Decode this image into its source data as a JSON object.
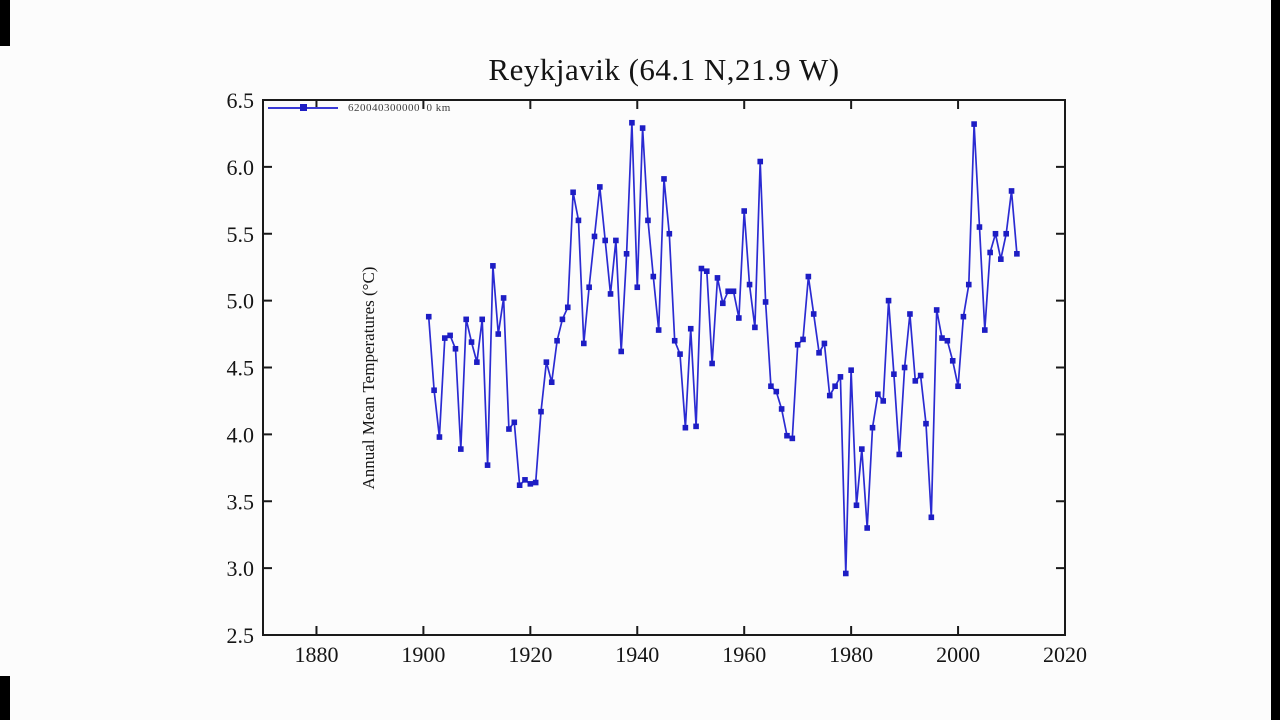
{
  "page": {
    "background": "#fcfcfc",
    "frame_bar_color": "#000000"
  },
  "chart_data": {
    "type": "line",
    "title": "Reykjavik (64.1 N,21.9 W)",
    "xlabel": "",
    "ylabel": "Annual Mean Temperatures (°C)",
    "legend_label": "620040300000  0 km",
    "legend_position": "top-left-inside",
    "grid": "off",
    "line_color": "#2b2bd2",
    "marker_color": "#1d1dc4",
    "axis_color": "#1a1a1a",
    "xlim": [
      1870,
      2020
    ],
    "ylim": [
      2.5,
      6.5
    ],
    "xticks": [
      1880,
      1900,
      1920,
      1940,
      1960,
      1980,
      2000,
      2020
    ],
    "yticks": [
      2.5,
      3.0,
      3.5,
      4.0,
      4.5,
      5.0,
      5.5,
      6.0,
      6.5
    ],
    "x": [
      1901,
      1902,
      1903,
      1904,
      1905,
      1906,
      1907,
      1908,
      1909,
      1910,
      1911,
      1912,
      1913,
      1914,
      1915,
      1916,
      1917,
      1918,
      1919,
      1920,
      1921,
      1922,
      1923,
      1924,
      1925,
      1926,
      1927,
      1928,
      1929,
      1930,
      1931,
      1932,
      1933,
      1934,
      1935,
      1936,
      1937,
      1938,
      1939,
      1940,
      1941,
      1942,
      1943,
      1944,
      1945,
      1946,
      1947,
      1948,
      1949,
      1950,
      1951,
      1952,
      1953,
      1954,
      1955,
      1956,
      1957,
      1958,
      1959,
      1960,
      1961,
      1962,
      1963,
      1964,
      1965,
      1966,
      1967,
      1968,
      1969,
      1970,
      1971,
      1972,
      1973,
      1974,
      1975,
      1976,
      1977,
      1978,
      1979,
      1980,
      1981,
      1982,
      1983,
      1984,
      1985,
      1986,
      1987,
      1988,
      1989,
      1990,
      1991,
      1992,
      1993,
      1994,
      1995,
      1996,
      1997,
      1998,
      1999,
      2000,
      2001,
      2002,
      2003,
      2004,
      2005,
      2006,
      2007,
      2008,
      2009,
      2010,
      2011
    ],
    "series": [
      {
        "name": "620040300000  0 km",
        "values": [
          4.88,
          4.33,
          3.98,
          4.72,
          4.74,
          4.64,
          3.89,
          4.86,
          4.69,
          4.54,
          4.86,
          3.77,
          5.26,
          4.75,
          5.02,
          4.04,
          4.09,
          3.62,
          3.66,
          3.63,
          3.64,
          4.17,
          4.54,
          4.39,
          4.7,
          4.86,
          4.95,
          5.81,
          5.6,
          4.68,
          5.1,
          5.48,
          5.85,
          5.45,
          5.05,
          5.45,
          4.62,
          5.35,
          6.33,
          5.1,
          6.29,
          5.6,
          5.18,
          4.78,
          5.91,
          5.5,
          4.7,
          4.6,
          4.05,
          4.79,
          4.06,
          5.24,
          5.22,
          4.53,
          5.17,
          4.98,
          5.07,
          5.07,
          4.87,
          5.67,
          5.12,
          4.8,
          6.04,
          4.99,
          4.36,
          4.32,
          4.19,
          3.99,
          3.97,
          4.67,
          4.71,
          5.18,
          4.9,
          4.61,
          4.68,
          4.29,
          4.36,
          4.43,
          2.96,
          4.48,
          3.47,
          3.89,
          3.3,
          4.05,
          4.3,
          4.25,
          5.0,
          4.45,
          3.85,
          4.5,
          4.9,
          4.4,
          4.44,
          4.08,
          3.38,
          4.93,
          4.72,
          4.7,
          4.55,
          4.36,
          4.88,
          5.12,
          6.32,
          5.55,
          4.78,
          5.36,
          5.5,
          5.31,
          5.5,
          5.82,
          5.35
        ]
      }
    ]
  }
}
